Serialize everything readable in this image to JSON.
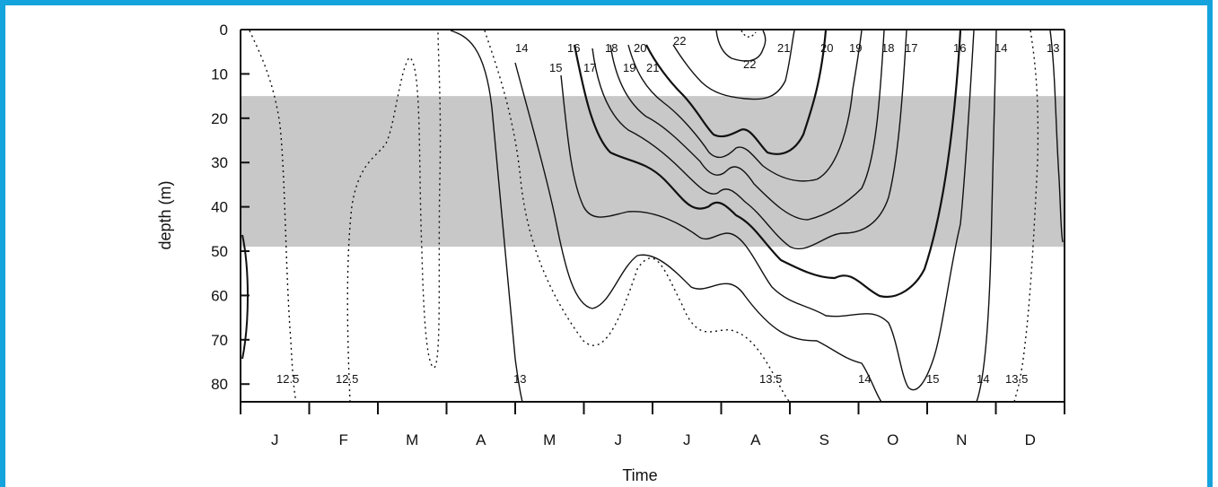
{
  "chart_data": {
    "type": "contour",
    "xlabel": "Time",
    "ylabel": "depth (m)",
    "x_categories": [
      "J",
      "F",
      "M",
      "A",
      "M",
      "J",
      "J",
      "A",
      "S",
      "O",
      "N",
      "D"
    ],
    "y_ticks": [
      0,
      10,
      20,
      30,
      40,
      50,
      60,
      70,
      80
    ],
    "ylim": [
      0,
      84
    ],
    "y_inverted": true,
    "shaded_band": {
      "depth_from": 15,
      "depth_to": 49,
      "color": "#c8c8c8"
    },
    "contour_labels": [
      "14",
      "15",
      "16",
      "17",
      "18",
      "19",
      "20",
      "21",
      "22",
      "22",
      "21",
      "20",
      "19",
      "18",
      "17",
      "16",
      "14",
      "13",
      "12.5",
      "12.5",
      "13",
      "13.5",
      "14",
      "15",
      "14",
      "13.5"
    ],
    "colors": {
      "frame": "#14a3dc",
      "line": "#111111"
    }
  }
}
